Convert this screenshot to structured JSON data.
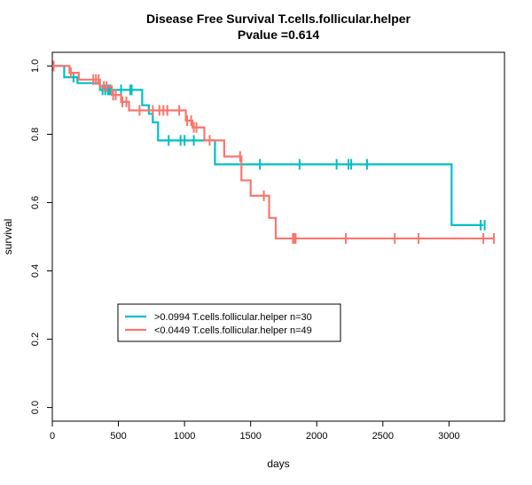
{
  "chart_data": {
    "type": "line",
    "step": true,
    "title": "Disease Free Survival T.cells.follicular.helper",
    "subtitle": "Pvalue =0.614",
    "xlabel": "days",
    "ylabel": "survival",
    "xlim": [
      0,
      3420
    ],
    "ylim": [
      -0.04,
      1.04
    ],
    "x_ticks": [
      0,
      500,
      1000,
      1500,
      2000,
      2500,
      3000
    ],
    "x_tick_labels": [
      "0",
      "500",
      "1000",
      "1500",
      "2000",
      "2500",
      "3000"
    ],
    "y_ticks": [
      0.0,
      0.2,
      0.4,
      0.6,
      0.8,
      1.0
    ],
    "y_tick_labels": [
      "0.0",
      "0.2",
      "0.4",
      "0.6",
      "0.8",
      "1.0"
    ],
    "grid": false,
    "legend_position": "lower-left",
    "series": [
      {
        "name": ">0.0994 T.cells.follicular.helper n=30",
        "color": "#00BFC4",
        "steps": [
          [
            0,
            1.0
          ],
          [
            90,
            0.967
          ],
          [
            190,
            0.95
          ],
          [
            360,
            0.93
          ],
          [
            680,
            0.885
          ],
          [
            730,
            0.86
          ],
          [
            760,
            0.835
          ],
          [
            800,
            0.782
          ],
          [
            1230,
            0.712
          ],
          [
            3020,
            0.534
          ],
          [
            3260,
            0.534
          ]
        ],
        "censor_x": [
          160,
          380,
          400,
          420,
          430,
          440,
          520,
          590,
          600,
          880,
          970,
          1000,
          1070,
          1570,
          1870,
          2150,
          2240,
          2260,
          2380,
          3240,
          3270
        ]
      },
      {
        "name": "<0.0449 T.cells.follicular.helper n=49",
        "color": "#F8766D",
        "steps": [
          [
            0,
            1.0
          ],
          [
            130,
            0.98
          ],
          [
            200,
            0.96
          ],
          [
            360,
            0.94
          ],
          [
            450,
            0.915
          ],
          [
            520,
            0.895
          ],
          [
            580,
            0.87
          ],
          [
            1010,
            0.84
          ],
          [
            1060,
            0.82
          ],
          [
            1150,
            0.782
          ],
          [
            1300,
            0.735
          ],
          [
            1430,
            0.665
          ],
          [
            1500,
            0.62
          ],
          [
            1640,
            0.555
          ],
          [
            1690,
            0.495
          ],
          [
            3340,
            0.495
          ]
        ],
        "censor_x": [
          10,
          140,
          310,
          330,
          350,
          390,
          410,
          460,
          480,
          530,
          560,
          660,
          760,
          810,
          840,
          870,
          960,
          1020,
          1050,
          1070,
          1090,
          1190,
          1420,
          1600,
          1820,
          1830,
          1840,
          2220,
          2590,
          2770,
          3260,
          3340
        ]
      }
    ]
  }
}
